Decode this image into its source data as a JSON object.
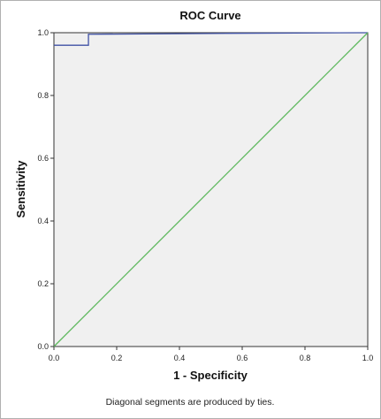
{
  "chart_data": {
    "type": "line",
    "title": "ROC Curve",
    "xlabel": "1 - Specificity",
    "ylabel": "Sensitivity",
    "xlim": [
      0.0,
      1.0
    ],
    "ylim": [
      0.0,
      1.0
    ],
    "x_ticks": [
      "0.0",
      "0.2",
      "0.4",
      "0.6",
      "0.8",
      "1.0"
    ],
    "y_ticks": [
      "0.0",
      "0.2",
      "0.4",
      "0.6",
      "0.8",
      "1.0"
    ],
    "grid": false,
    "legend": "none",
    "series": [
      {
        "color": "#3f51a5",
        "points": [
          [
            0.0,
            0.96
          ],
          [
            0.11,
            0.96
          ],
          [
            0.11,
            0.995
          ],
          [
            0.56,
            0.998
          ],
          [
            1.0,
            1.0
          ]
        ]
      },
      {
        "color": "#5cb85c",
        "points": [
          [
            0.0,
            0.0
          ],
          [
            1.0,
            1.0
          ]
        ]
      }
    ],
    "footnote": "Diagonal segments are produced by ties.",
    "plot_background": "#f0f0f0"
  }
}
